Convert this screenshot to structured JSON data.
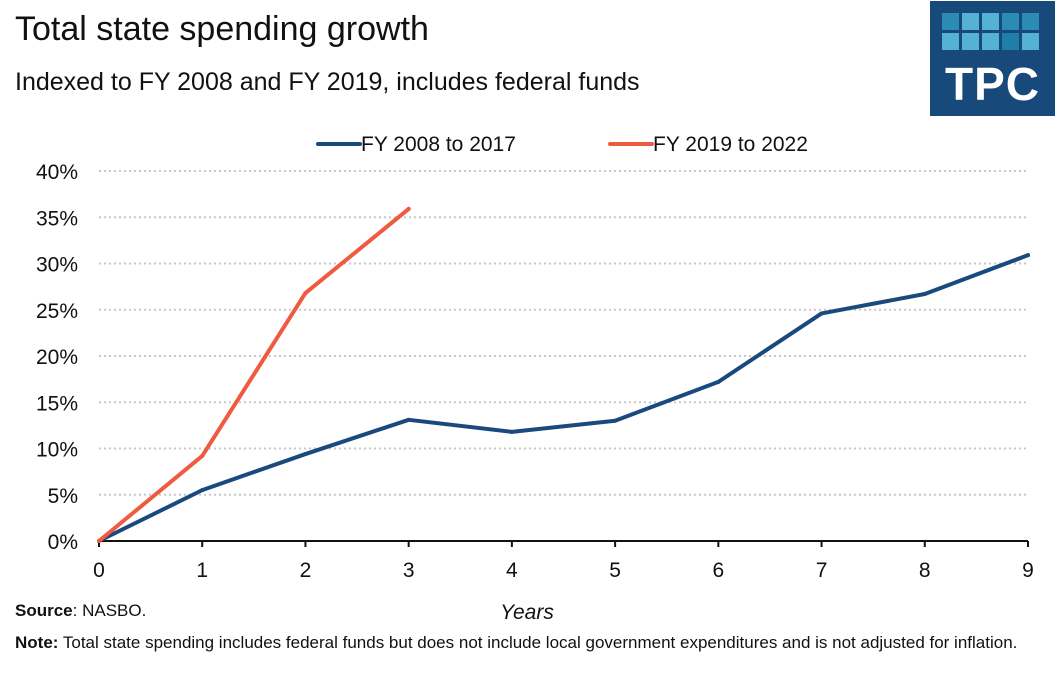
{
  "header": {
    "title": "Total state spending growth",
    "subtitle": "Indexed to FY 2008 and FY 2019, includes federal funds"
  },
  "logo": {
    "text": "TPC",
    "background": "#17497a",
    "squares": [
      "#2a8bb5",
      "#55b2d3",
      "#55b2d3",
      "#2a8bb5",
      "#2a8bb5",
      "#55b2d3",
      "#55b2d3",
      "#55b2d3",
      "#1f7fa8",
      "#55b2d3"
    ]
  },
  "footer": {
    "source_label": "Source",
    "source_text": ": NASBO.",
    "note_label": "Note:",
    "note_text": " Total state spending includes federal funds but does not include local government expenditures and is not adjusted for inflation."
  },
  "chart_data": {
    "type": "line",
    "title": "Total state spending growth",
    "subtitle": "Indexed to FY 2008 and FY 2019, includes federal funds",
    "xlabel": "Years",
    "ylabel": "",
    "x": [
      0,
      1,
      2,
      3,
      4,
      5,
      6,
      7,
      8,
      9
    ],
    "xlim": [
      0,
      9
    ],
    "ylim": [
      0,
      40
    ],
    "x_ticks": [
      "0",
      "1",
      "2",
      "3",
      "4",
      "5",
      "6",
      "7",
      "8",
      "9"
    ],
    "y_ticks": [
      0,
      5,
      10,
      15,
      20,
      25,
      30,
      35,
      40
    ],
    "y_tick_labels": [
      "0%",
      "5%",
      "10%",
      "15%",
      "20%",
      "25%",
      "30%",
      "35%",
      "40%"
    ],
    "grid": "horizontal dotted",
    "legend_position": "top-center",
    "series": [
      {
        "name": "FY 2008 to 2017",
        "color": "#1a4a7d",
        "x": [
          0,
          1,
          2,
          3,
          4,
          5,
          6,
          7,
          8,
          9
        ],
        "values": [
          0,
          5.5,
          9.4,
          13.1,
          11.8,
          13.0,
          17.2,
          24.6,
          26.7,
          30.9
        ]
      },
      {
        "name": "FY 2019 to 2022",
        "color": "#ef5b40",
        "x": [
          0,
          1,
          2,
          3
        ],
        "values": [
          0,
          9.2,
          26.8,
          35.9
        ]
      }
    ]
  }
}
